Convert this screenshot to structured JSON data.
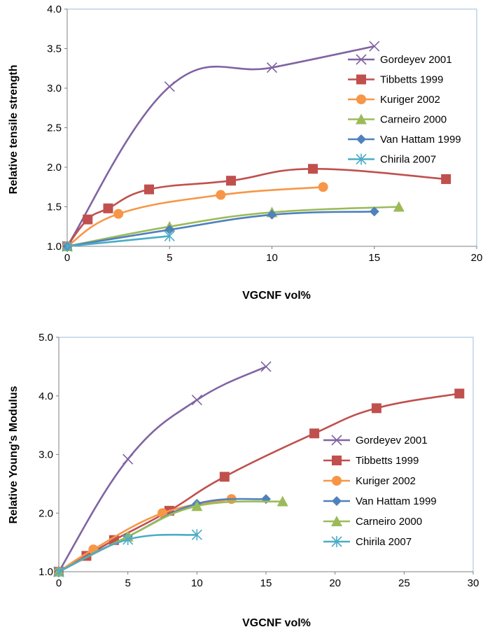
{
  "chart_data": [
    {
      "type": "line",
      "xlabel": "VGCNF vol%",
      "ylabel": "Relative tensile strength",
      "xlim": [
        0,
        20
      ],
      "ylim": [
        1.0,
        4.0
      ],
      "xticks": [
        "0",
        "5",
        "10",
        "15",
        "20"
      ],
      "yticks": [
        "1.0",
        "1.5",
        "2.0",
        "2.5",
        "3.0",
        "3.5",
        "4.0"
      ],
      "grid": false,
      "legend_position": "right",
      "series": [
        {
          "name": "Gordeyev 2001",
          "color": "#8064a2",
          "marker": "x",
          "x": [
            0,
            5,
            10,
            15
          ],
          "y": [
            1.0,
            3.02,
            3.26,
            3.53
          ]
        },
        {
          "name": "Tibbetts 1999",
          "color": "#c0504d",
          "marker": "square",
          "x": [
            0,
            1,
            2,
            4,
            8,
            12,
            18.5
          ],
          "y": [
            1.0,
            1.34,
            1.48,
            1.72,
            1.83,
            1.98,
            1.85
          ]
        },
        {
          "name": "Kuriger 2002",
          "color": "#f79646",
          "marker": "circle",
          "x": [
            0,
            2.5,
            7.5,
            12.5
          ],
          "y": [
            1.0,
            1.41,
            1.65,
            1.75
          ]
        },
        {
          "name": "Carneiro 2000",
          "color": "#9bbb59",
          "marker": "triangle",
          "x": [
            0,
            5,
            10,
            16.2
          ],
          "y": [
            1.0,
            1.25,
            1.43,
            1.5
          ]
        },
        {
          "name": "Van Hattam 1999",
          "color": "#4f81bd",
          "marker": "diamond",
          "x": [
            0,
            5,
            10,
            15
          ],
          "y": [
            1.0,
            1.21,
            1.4,
            1.44
          ]
        },
        {
          "name": "Chirila 2007",
          "color": "#4bacc6",
          "marker": "star",
          "x": [
            0,
            5
          ],
          "y": [
            1.0,
            1.13
          ]
        }
      ]
    },
    {
      "type": "line",
      "xlabel": "VGCNF vol%",
      "ylabel": "Relative Young's Modulus",
      "xlim": [
        0,
        30
      ],
      "ylim": [
        1.0,
        5.0
      ],
      "xticks": [
        "0",
        "5",
        "10",
        "15",
        "20",
        "25",
        "30"
      ],
      "yticks": [
        "1.0",
        "2.0",
        "3.0",
        "4.0",
        "5.0"
      ],
      "grid": false,
      "legend_position": "right",
      "series": [
        {
          "name": "Gordeyev 2001",
          "color": "#8064a2",
          "marker": "x",
          "x": [
            0,
            5,
            10,
            15
          ],
          "y": [
            1.0,
            2.92,
            3.93,
            4.5
          ]
        },
        {
          "name": "Tibbetts 1999",
          "color": "#c0504d",
          "marker": "square",
          "x": [
            0,
            2,
            4,
            8,
            12,
            18.5,
            23,
            29
          ],
          "y": [
            1.0,
            1.27,
            1.54,
            2.04,
            2.62,
            3.36,
            3.79,
            4.04
          ]
        },
        {
          "name": "Kuriger 2002",
          "color": "#f79646",
          "marker": "circle",
          "x": [
            0,
            2.5,
            7.5,
            12.5
          ],
          "y": [
            1.0,
            1.38,
            2.0,
            2.24
          ]
        },
        {
          "name": "Van Hattam 1999",
          "color": "#4f81bd",
          "marker": "diamond",
          "x": [
            0,
            5,
            10,
            15
          ],
          "y": [
            1.0,
            1.6,
            2.16,
            2.24
          ]
        },
        {
          "name": "Carneiro 2000",
          "color": "#9bbb59",
          "marker": "triangle",
          "x": [
            0,
            5,
            10,
            16.2
          ],
          "y": [
            1.0,
            1.6,
            2.12,
            2.2
          ]
        },
        {
          "name": "Chirila 2007",
          "color": "#4bacc6",
          "marker": "star",
          "x": [
            0,
            5,
            10
          ],
          "y": [
            1.0,
            1.55,
            1.63
          ]
        }
      ]
    }
  ]
}
